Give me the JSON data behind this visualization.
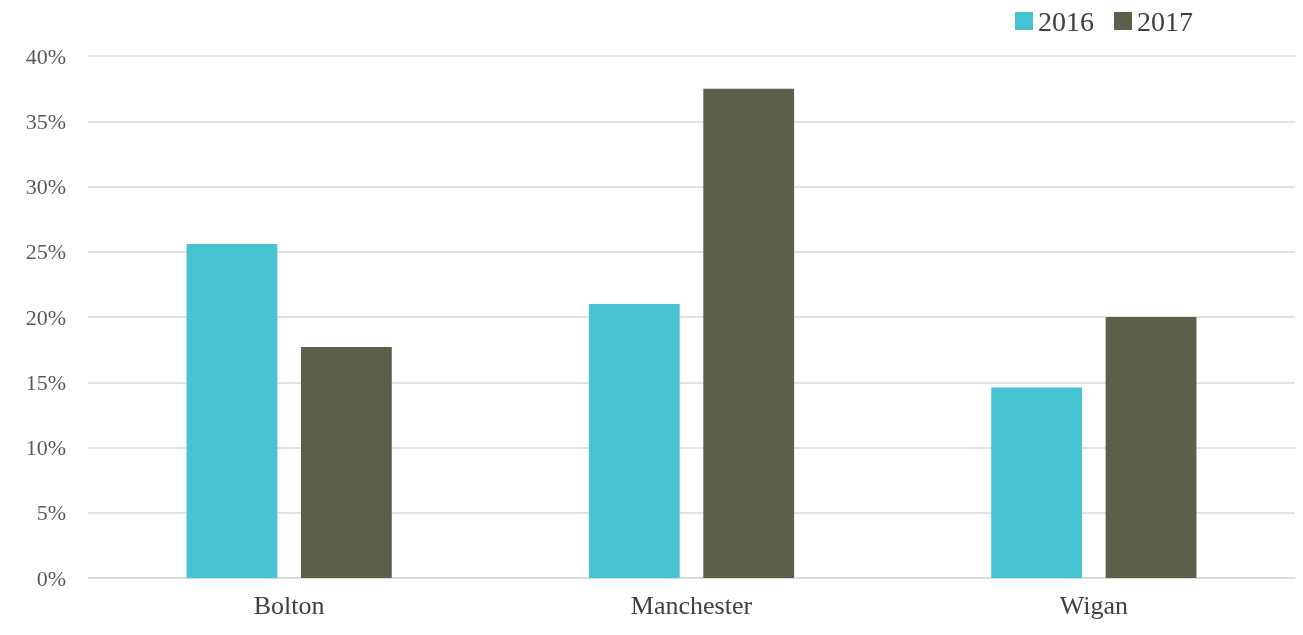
{
  "chart_data": {
    "type": "bar",
    "categories": [
      "Bolton",
      "Manchester",
      "Wigan"
    ],
    "series": [
      {
        "name": "2016",
        "color": "#48c3d1",
        "values": [
          25.6,
          21.0,
          14.6
        ]
      },
      {
        "name": "2017",
        "color": "#5d5f4a",
        "values": [
          17.7,
          37.5,
          20.0
        ]
      }
    ],
    "ylim": [
      0,
      40
    ],
    "yticks": [
      {
        "value": 0,
        "label": "0%"
      },
      {
        "value": 5,
        "label": "5%"
      },
      {
        "value": 10,
        "label": "10%"
      },
      {
        "value": 15,
        "label": "15%"
      },
      {
        "value": 20,
        "label": "20%"
      },
      {
        "value": 25,
        "label": "25%"
      },
      {
        "value": 30,
        "label": "30%"
      },
      {
        "value": 35,
        "label": "35%"
      },
      {
        "value": 40,
        "label": "40%"
      }
    ],
    "grid": "y",
    "legend": "top right"
  }
}
